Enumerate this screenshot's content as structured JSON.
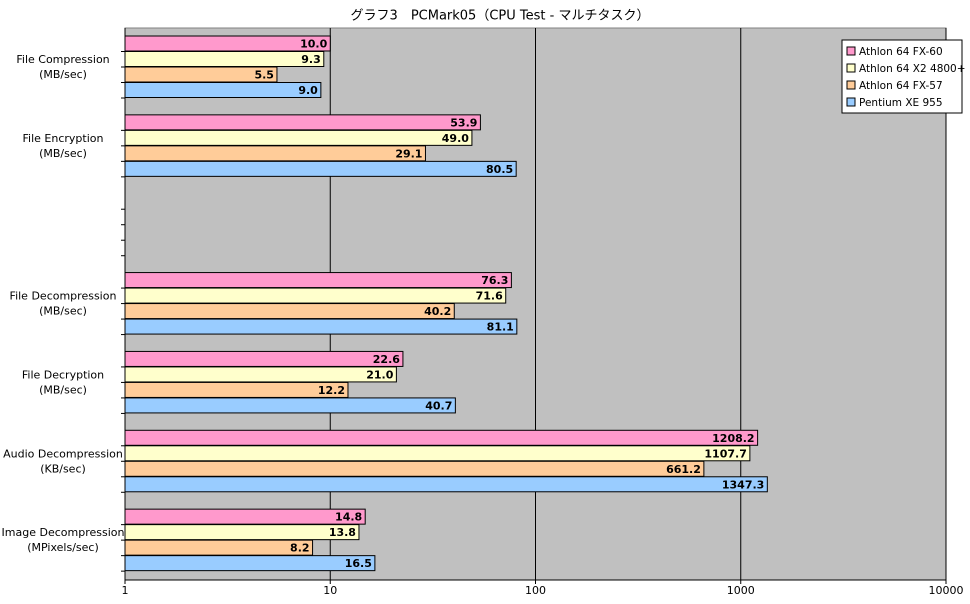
{
  "chart_data": {
    "type": "bar",
    "orientation": "horizontal",
    "title": "グラフ3　PCMark05（CPU Test - マルチタスク）",
    "categories": [
      "File Compression\n(MB/sec)",
      "File Encryption\n(MB/sec)",
      null,
      "File Decompression\n(MB/sec)",
      "File Decryption\n(MB/sec)",
      "Audio Decompression\n(KB/sec)",
      "Image Decompression\n(MPixels/sec)"
    ],
    "series": [
      {
        "name": "Athlon 64 FX-60",
        "color": "#ff99cc",
        "values": [
          10.0,
          53.9,
          null,
          76.3,
          22.6,
          1208.2,
          14.8
        ],
        "value_labels": [
          "10.0",
          "53.9",
          null,
          "76.3",
          "22.6",
          "1208.2",
          "14.8"
        ]
      },
      {
        "name": "Athlon 64 X2 4800+",
        "color": "#ffffcc",
        "values": [
          9.3,
          49.0,
          null,
          71.6,
          21.0,
          1107.7,
          13.8
        ],
        "value_labels": [
          "9.3",
          "49.0",
          null,
          "71.6",
          "21.0",
          "1107.7",
          "13.8"
        ]
      },
      {
        "name": "Athlon 64 FX-57",
        "color": "#ffcc99",
        "values": [
          5.5,
          29.1,
          null,
          40.2,
          12.2,
          661.2,
          8.2
        ],
        "value_labels": [
          "5.5",
          "29.1",
          null,
          "40.2",
          "12.2",
          "661.2",
          "8.2"
        ]
      },
      {
        "name": "Pentium XE 955",
        "color": "#99ccff",
        "values": [
          9.0,
          80.5,
          null,
          81.1,
          40.7,
          1347.3,
          16.5
        ],
        "value_labels": [
          "9.0",
          "80.5",
          null,
          "81.1",
          "40.7",
          "1347.3",
          "16.5"
        ]
      }
    ],
    "xscale": "log",
    "xlim": [
      1,
      10000
    ],
    "xticks": [
      1,
      10,
      100,
      1000,
      10000
    ],
    "grid": true,
    "legend": "top-right",
    "plot_background": "#c0c0c0"
  }
}
